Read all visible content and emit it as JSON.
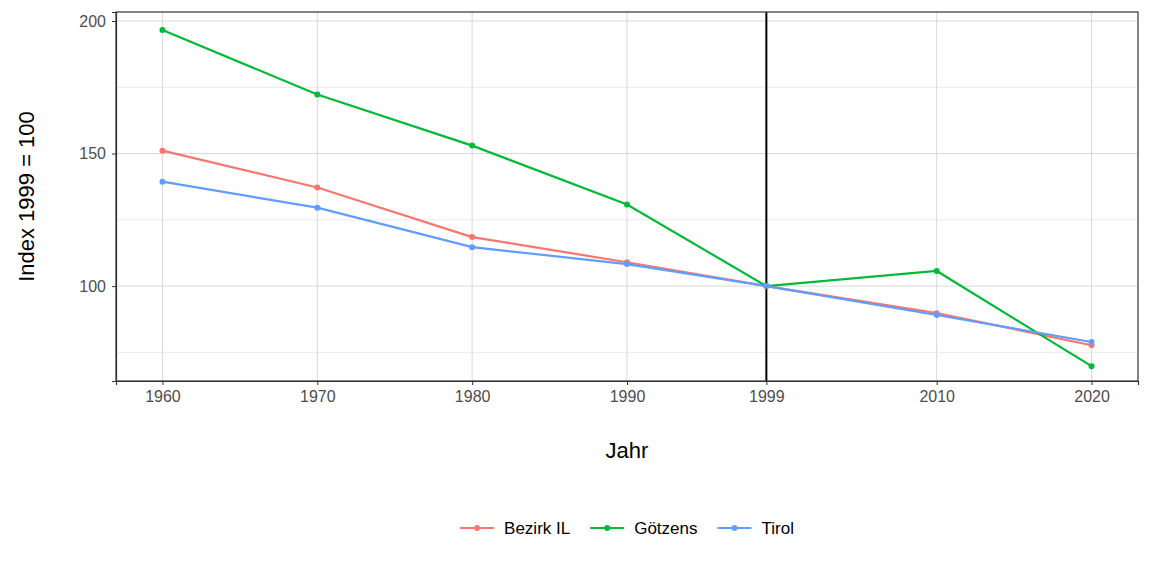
{
  "chart_data": {
    "type": "line",
    "x_label": "Jahr",
    "y_label": "Index 1999 = 100",
    "x": [
      1960,
      1970,
      1980,
      1990,
      1999,
      2010,
      2020
    ],
    "series": [
      {
        "name": "Bezirk IL",
        "color": "#F8766D",
        "marker": "circle",
        "values": [
          151.1,
          137.2,
          118.5,
          109.0,
          100,
          89.8,
          77.7
        ]
      },
      {
        "name": "Götzens",
        "color": "#00BA38",
        "marker": "circle",
        "values": [
          196.6,
          172.3,
          153.0,
          130.8,
          100,
          105.7,
          69.8
        ]
      },
      {
        "name": "Tirol",
        "color": "#619CFF",
        "marker": "circle",
        "values": [
          139.4,
          129.6,
          114.7,
          108.3,
          100,
          89.1,
          78.9
        ]
      }
    ],
    "xlim": [
      1957,
      2023
    ],
    "xticks": [
      1960,
      1970,
      1980,
      1990,
      1999,
      2010,
      2020
    ],
    "ylim": [
      64.2,
      203.4
    ],
    "yticks": [
      100,
      150,
      200
    ],
    "reference_line": {
      "x": 1999
    },
    "grid": true,
    "legend": "bottom"
  }
}
